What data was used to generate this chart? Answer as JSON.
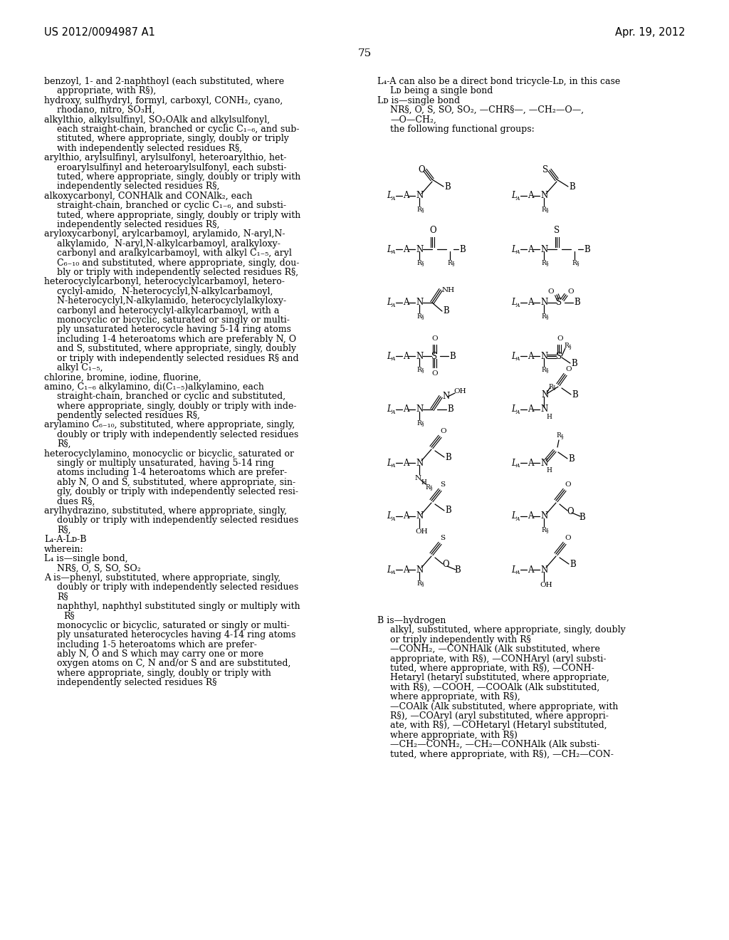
{
  "background_color": "#ffffff",
  "page_number": "75",
  "header_left": "US 2012/0094987 A1",
  "header_right": "Apr. 19, 2012"
}
